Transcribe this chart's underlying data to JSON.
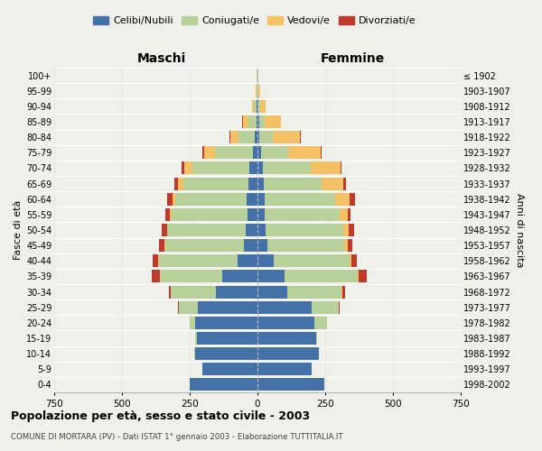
{
  "age_groups": [
    "0-4",
    "5-9",
    "10-14",
    "15-19",
    "20-24",
    "25-29",
    "30-34",
    "35-39",
    "40-44",
    "45-49",
    "50-54",
    "55-59",
    "60-64",
    "65-69",
    "70-74",
    "75-79",
    "80-84",
    "85-89",
    "90-94",
    "95-99",
    "100+"
  ],
  "birth_years": [
    "1998-2002",
    "1993-1997",
    "1988-1992",
    "1983-1987",
    "1978-1982",
    "1973-1977",
    "1968-1972",
    "1963-1967",
    "1958-1962",
    "1953-1957",
    "1948-1952",
    "1943-1947",
    "1938-1942",
    "1933-1937",
    "1928-1932",
    "1923-1927",
    "1918-1922",
    "1913-1917",
    "1908-1912",
    "1903-1907",
    "≤ 1902"
  ],
  "maschi": {
    "celibe": [
      250,
      205,
      230,
      225,
      230,
      220,
      155,
      130,
      75,
      50,
      42,
      38,
      40,
      35,
      30,
      18,
      10,
      5,
      2,
      0,
      0
    ],
    "coniugato": [
      0,
      0,
      2,
      5,
      20,
      70,
      165,
      230,
      290,
      290,
      290,
      280,
      265,
      240,
      210,
      140,
      60,
      30,
      10,
      5,
      2
    ],
    "vedovo": [
      0,
      0,
      0,
      0,
      0,
      0,
      0,
      0,
      1,
      2,
      3,
      5,
      10,
      20,
      30,
      40,
      30,
      20,
      8,
      3,
      1
    ],
    "divorziato": [
      0,
      0,
      0,
      0,
      1,
      2,
      8,
      30,
      20,
      20,
      20,
      18,
      18,
      12,
      10,
      5,
      2,
      1,
      0,
      0,
      0
    ]
  },
  "femmine": {
    "nubile": [
      245,
      200,
      225,
      215,
      210,
      200,
      110,
      100,
      60,
      35,
      30,
      28,
      25,
      22,
      20,
      14,
      8,
      5,
      2,
      0,
      0
    ],
    "coniugata": [
      0,
      0,
      2,
      5,
      45,
      100,
      200,
      270,
      280,
      285,
      285,
      275,
      260,
      215,
      175,
      100,
      50,
      20,
      8,
      4,
      2
    ],
    "vedova": [
      0,
      0,
      0,
      0,
      0,
      1,
      2,
      4,
      8,
      12,
      20,
      30,
      55,
      80,
      110,
      120,
      100,
      60,
      20,
      5,
      2
    ],
    "divorziata": [
      0,
      0,
      0,
      0,
      1,
      3,
      12,
      30,
      20,
      18,
      20,
      10,
      20,
      8,
      5,
      3,
      2,
      1,
      0,
      0,
      0
    ]
  },
  "colors": {
    "celibe_nubile": "#4472A8",
    "coniugato_a": "#B8D09A",
    "vedovo_a": "#F5C165",
    "divorziato_a": "#C0392B"
  },
  "xlim": 750,
  "title": "Popolazione per età, sesso e stato civile - 2003",
  "subtitle": "COMUNE DI MORTARA (PV) - Dati ISTAT 1° gennaio 2003 - Elaborazione TUTTITALIA.IT",
  "ylabel_left": "Fasce di età",
  "ylabel_right": "Anni di nascita",
  "xlabel_maschi": "Maschi",
  "xlabel_femmine": "Femmine",
  "legend_labels": [
    "Celibi/Nubili",
    "Coniugati/e",
    "Vedovi/e",
    "Divorziati/e"
  ],
  "background_color": "#f0f0eb"
}
